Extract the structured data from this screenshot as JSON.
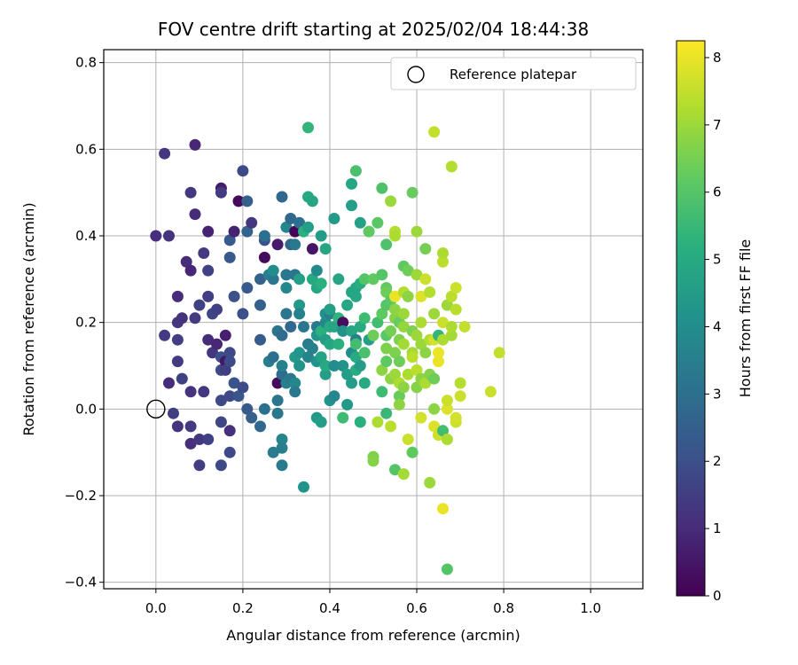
{
  "chart_data": {
    "type": "scatter",
    "title": "FOV centre drift starting at 2025/02/04 18:44:38",
    "xlabel": "Angular distance from reference (arcmin)",
    "ylabel": "Rotation from reference (arcmin)",
    "xlim": [
      -0.12,
      1.12
    ],
    "ylim": [
      -0.415,
      0.83
    ],
    "xticks": [
      "0.0",
      "0.2",
      "0.4",
      "0.6",
      "0.8",
      "1.0"
    ],
    "xtick_values": [
      0,
      0.2,
      0.4,
      0.6,
      0.8,
      1.0
    ],
    "yticks": [
      "−0.4",
      "−0.2",
      "0.0",
      "0.2",
      "0.4",
      "0.6",
      "0.8"
    ],
    "ytick_values": [
      -0.4,
      -0.2,
      0,
      0.2,
      0.4,
      0.6,
      0.8
    ],
    "grid": true,
    "legend": {
      "label": "Reference platepar",
      "position": "top-right"
    },
    "reference_point": {
      "x": 0.0,
      "y": 0.0
    },
    "colorbar": {
      "label": "Hours from first FF file",
      "colormap": "viridis",
      "range": [
        0,
        8.25
      ],
      "ticks": [
        "0",
        "1",
        "2",
        "3",
        "4",
        "5",
        "6",
        "7",
        "8"
      ],
      "tick_values": [
        0,
        1,
        2,
        3,
        4,
        5,
        6,
        7,
        8
      ]
    },
    "points": [
      [
        0.0,
        0.4,
        1.1
      ],
      [
        0.02,
        0.59,
        1.3
      ],
      [
        0.02,
        0.17,
        1.4
      ],
      [
        0.03,
        0.4,
        1.2
      ],
      [
        0.03,
        0.06,
        1.0
      ],
      [
        0.04,
        -0.01,
        1.5
      ],
      [
        0.05,
        0.26,
        1.0
      ],
      [
        0.05,
        0.2,
        1.3
      ],
      [
        0.05,
        0.16,
        1.5
      ],
      [
        0.05,
        0.11,
        1.4
      ],
      [
        0.05,
        -0.04,
        1.2
      ],
      [
        0.06,
        0.07,
        1.6
      ],
      [
        0.06,
        0.21,
        1.2
      ],
      [
        0.07,
        0.34,
        1.0
      ],
      [
        0.08,
        0.5,
        1.3
      ],
      [
        0.08,
        0.32,
        0.9
      ],
      [
        0.08,
        0.04,
        1.2
      ],
      [
        0.08,
        -0.08,
        1.1
      ],
      [
        0.08,
        -0.04,
        1.4
      ],
      [
        0.09,
        0.61,
        0.9
      ],
      [
        0.09,
        0.45,
        1.0
      ],
      [
        0.09,
        0.21,
        1.4
      ],
      [
        0.1,
        0.24,
        1.6
      ],
      [
        0.1,
        -0.07,
        1.3
      ],
      [
        0.1,
        -0.13,
        1.5
      ],
      [
        0.11,
        0.04,
        1.3
      ],
      [
        0.11,
        0.36,
        1.4
      ],
      [
        0.12,
        0.26,
        1.5
      ],
      [
        0.12,
        0.16,
        1.0
      ],
      [
        0.12,
        0.41,
        0.8
      ],
      [
        0.12,
        -0.07,
        1.6
      ],
      [
        0.12,
        0.32,
        1.6
      ],
      [
        0.13,
        0.22,
        1.7
      ],
      [
        0.13,
        0.13,
        1.3
      ],
      [
        0.14,
        0.23,
        1.6
      ],
      [
        0.14,
        0.15,
        0.9
      ],
      [
        0.15,
        0.51,
        0.6
      ],
      [
        0.15,
        0.5,
        1.4
      ],
      [
        0.15,
        0.09,
        1.9
      ],
      [
        0.15,
        0.12,
        2.0
      ],
      [
        0.15,
        -0.03,
        1.7
      ],
      [
        0.15,
        0.02,
        1.8
      ],
      [
        0.15,
        -0.13,
        1.8
      ],
      [
        0.16,
        0.11,
        0.5
      ],
      [
        0.16,
        0.17,
        0.7
      ],
      [
        0.16,
        0.09,
        1.5
      ],
      [
        0.17,
        0.39,
        2.3
      ],
      [
        0.17,
        0.35,
        2.3
      ],
      [
        0.17,
        0.13,
        1.8
      ],
      [
        0.17,
        0.11,
        1.9
      ],
      [
        0.17,
        0.03,
        1.8
      ],
      [
        0.17,
        -0.05,
        1.1
      ],
      [
        0.17,
        -0.1,
        1.8
      ],
      [
        0.18,
        0.41,
        0.8
      ],
      [
        0.18,
        0.26,
        2.0
      ],
      [
        0.18,
        0.06,
        2.1
      ],
      [
        0.19,
        0.48,
        0.2
      ],
      [
        0.19,
        0.03,
        2.2
      ],
      [
        0.2,
        0.55,
        1.8
      ],
      [
        0.2,
        0.22,
        2.0
      ],
      [
        0.2,
        0.05,
        1.9
      ],
      [
        0.21,
        0.48,
        2.5
      ],
      [
        0.21,
        0.41,
        2.6
      ],
      [
        0.21,
        0.28,
        2.3
      ],
      [
        0.21,
        0.0,
        2.3
      ],
      [
        0.22,
        0.43,
        1.3
      ],
      [
        0.22,
        -0.02,
        2.5
      ],
      [
        0.24,
        0.24,
        2.5
      ],
      [
        0.24,
        0.3,
        2.6
      ],
      [
        0.24,
        0.16,
        2.4
      ],
      [
        0.24,
        -0.04,
        2.8
      ],
      [
        0.25,
        0.39,
        2.1
      ],
      [
        0.25,
        0.4,
        3.0
      ],
      [
        0.25,
        0.35,
        0.2
      ],
      [
        0.25,
        0.0,
        3.0
      ],
      [
        0.26,
        0.31,
        3.6
      ],
      [
        0.26,
        0.11,
        3.5
      ],
      [
        0.27,
        0.3,
        3.2
      ],
      [
        0.27,
        0.12,
        3.0
      ],
      [
        0.27,
        -0.1,
        3.4
      ],
      [
        0.27,
        0.32,
        4.0
      ],
      [
        0.28,
        0.38,
        0.6
      ],
      [
        0.28,
        0.18,
        3.2
      ],
      [
        0.28,
        0.06,
        0.2
      ],
      [
        0.28,
        0.02,
        3.2
      ],
      [
        0.28,
        -0.01,
        3.3
      ],
      [
        0.29,
        0.49,
        2.8
      ],
      [
        0.29,
        0.08,
        2.9
      ],
      [
        0.29,
        -0.07,
        3.7
      ],
      [
        0.29,
        -0.13,
        3.4
      ],
      [
        0.29,
        -0.09,
        3.5
      ],
      [
        0.29,
        0.1,
        3.6
      ],
      [
        0.29,
        0.17,
        2.9
      ],
      [
        0.3,
        0.42,
        3.8
      ],
      [
        0.3,
        0.28,
        3.8
      ],
      [
        0.3,
        0.22,
        3.2
      ],
      [
        0.3,
        0.31,
        3.3
      ],
      [
        0.3,
        0.06,
        3.6
      ],
      [
        0.31,
        0.44,
        2.8
      ],
      [
        0.31,
        0.38,
        2.7
      ],
      [
        0.31,
        0.07,
        3.3
      ],
      [
        0.31,
        0.19,
        2.8
      ],
      [
        0.32,
        0.41,
        0.1
      ],
      [
        0.32,
        0.38,
        3.3
      ],
      [
        0.32,
        0.31,
        3.2
      ],
      [
        0.32,
        0.12,
        4.4
      ],
      [
        0.32,
        0.06,
        3.8
      ],
      [
        0.32,
        0.04,
        3.3
      ],
      [
        0.33,
        0.43,
        3.0
      ],
      [
        0.33,
        0.24,
        4.4
      ],
      [
        0.33,
        0.3,
        4.6
      ],
      [
        0.33,
        0.13,
        4.3
      ],
      [
        0.33,
        0.22,
        3.6
      ],
      [
        0.33,
        0.1,
        4.2
      ],
      [
        0.34,
        0.19,
        3.2
      ],
      [
        0.34,
        -0.18,
        4.2
      ],
      [
        0.34,
        0.41,
        5.2
      ],
      [
        0.35,
        0.49,
        5.0
      ],
      [
        0.35,
        0.65,
        5.4
      ],
      [
        0.35,
        0.15,
        3.4
      ],
      [
        0.35,
        0.12,
        3.7
      ],
      [
        0.35,
        0.42,
        4.6
      ],
      [
        0.36,
        0.37,
        0.5
      ],
      [
        0.36,
        0.14,
        3.6
      ],
      [
        0.36,
        0.3,
        5.0
      ],
      [
        0.36,
        0.48,
        4.8
      ],
      [
        0.37,
        0.32,
        3.9
      ],
      [
        0.37,
        0.19,
        3.3
      ],
      [
        0.37,
        0.17,
        4.3
      ],
      [
        0.37,
        0.11,
        4.2
      ],
      [
        0.37,
        -0.02,
        4.4
      ],
      [
        0.37,
        0.28,
        4.9
      ],
      [
        0.38,
        0.29,
        5.2
      ],
      [
        0.38,
        -0.03,
        4.6
      ],
      [
        0.38,
        0.12,
        4.7
      ],
      [
        0.38,
        0.4,
        4.5
      ],
      [
        0.38,
        0.18,
        5.2
      ],
      [
        0.39,
        0.2,
        3.8
      ],
      [
        0.39,
        0.37,
        4.8
      ],
      [
        0.39,
        0.22,
        4.1
      ],
      [
        0.39,
        0.08,
        4.6
      ],
      [
        0.39,
        0.16,
        4.5
      ],
      [
        0.39,
        0.1,
        5.0
      ],
      [
        0.4,
        0.22,
        3.6
      ],
      [
        0.4,
        0.02,
        4.2
      ],
      [
        0.4,
        0.19,
        5.0
      ],
      [
        0.4,
        0.23,
        4.6
      ],
      [
        0.4,
        0.15,
        4.9
      ],
      [
        0.41,
        0.44,
        4.4
      ],
      [
        0.41,
        0.19,
        4.8
      ],
      [
        0.41,
        0.1,
        4.0
      ],
      [
        0.41,
        0.03,
        3.8
      ],
      [
        0.42,
        0.3,
        4.8
      ],
      [
        0.42,
        0.15,
        5.2
      ],
      [
        0.42,
        0.21,
        5.3
      ],
      [
        0.43,
        0.2,
        0.3
      ],
      [
        0.43,
        0.1,
        4.2
      ],
      [
        0.43,
        0.18,
        4.2
      ],
      [
        0.43,
        -0.02,
        5.6
      ],
      [
        0.44,
        0.24,
        4.9
      ],
      [
        0.44,
        0.01,
        4.4
      ],
      [
        0.44,
        0.08,
        4.6
      ],
      [
        0.45,
        0.52,
        4.9
      ],
      [
        0.45,
        0.47,
        4.6
      ],
      [
        0.45,
        0.27,
        4.8
      ],
      [
        0.45,
        0.13,
        4.0
      ],
      [
        0.45,
        0.18,
        4.8
      ],
      [
        0.45,
        0.06,
        4.5
      ],
      [
        0.46,
        0.55,
        5.8
      ],
      [
        0.46,
        0.28,
        4.9
      ],
      [
        0.46,
        0.16,
        3.6
      ],
      [
        0.46,
        0.26,
        4.9
      ],
      [
        0.46,
        0.12,
        5.0
      ],
      [
        0.46,
        0.09,
        5.1
      ],
      [
        0.46,
        0.15,
        5.7
      ],
      [
        0.47,
        0.43,
        4.7
      ],
      [
        0.47,
        0.19,
        5.0
      ],
      [
        0.47,
        0.1,
        4.5
      ],
      [
        0.47,
        -0.03,
        5.2
      ],
      [
        0.47,
        0.29,
        5.1
      ],
      [
        0.48,
        0.06,
        5.0
      ],
      [
        0.48,
        0.21,
        5.6
      ],
      [
        0.48,
        0.13,
        5.8
      ],
      [
        0.48,
        0.3,
        6.0
      ],
      [
        0.49,
        0.41,
        6.2
      ],
      [
        0.49,
        0.16,
        4.6
      ],
      [
        0.5,
        0.17,
        6.4
      ],
      [
        0.5,
        -0.11,
        6.6
      ],
      [
        0.5,
        -0.12,
        6.7
      ],
      [
        0.5,
        0.3,
        6.2
      ],
      [
        0.51,
        0.43,
        6.1
      ],
      [
        0.51,
        -0.03,
        7.2
      ],
      [
        0.51,
        0.2,
        5.7
      ],
      [
        0.52,
        0.51,
        5.9
      ],
      [
        0.52,
        0.22,
        6.2
      ],
      [
        0.52,
        0.09,
        6.8
      ],
      [
        0.52,
        0.04,
        5.6
      ],
      [
        0.52,
        0.31,
        6.0
      ],
      [
        0.53,
        0.38,
        5.9
      ],
      [
        0.53,
        0.28,
        6.2
      ],
      [
        0.53,
        0.24,
        6.0
      ],
      [
        0.53,
        0.11,
        6.2
      ],
      [
        0.53,
        0.14,
        6.6
      ],
      [
        0.53,
        0.17,
        6.1
      ],
      [
        0.53,
        -0.01,
        5.5
      ],
      [
        0.53,
        0.27,
        6.4
      ],
      [
        0.54,
        0.48,
        7.0
      ],
      [
        0.54,
        0.18,
        6.5
      ],
      [
        0.54,
        0.25,
        6.1
      ],
      [
        0.54,
        -0.04,
        7.4
      ],
      [
        0.54,
        0.07,
        6.8
      ],
      [
        0.55,
        0.41,
        7.3
      ],
      [
        0.55,
        0.4,
        7.2
      ],
      [
        0.55,
        0.26,
        8.0
      ],
      [
        0.55,
        0.21,
        6.7
      ],
      [
        0.55,
        0.13,
        6.6
      ],
      [
        0.55,
        -0.14,
        6.0
      ],
      [
        0.55,
        0.08,
        7.0
      ],
      [
        0.55,
        0.23,
        6.8
      ],
      [
        0.56,
        0.2,
        6.3
      ],
      [
        0.56,
        0.16,
        6.6
      ],
      [
        0.56,
        0.03,
        6.3
      ],
      [
        0.56,
        0.06,
        7.2
      ],
      [
        0.56,
        0.01,
        6.8
      ],
      [
        0.56,
        0.11,
        6.4
      ],
      [
        0.57,
        0.33,
        6.2
      ],
      [
        0.57,
        0.22,
        7.0
      ],
      [
        0.57,
        0.15,
        7.1
      ],
      [
        0.57,
        0.27,
        7.3
      ],
      [
        0.57,
        -0.15,
        7.1
      ],
      [
        0.57,
        0.05,
        6.8
      ],
      [
        0.57,
        0.19,
        6.9
      ],
      [
        0.58,
        0.32,
        6.4
      ],
      [
        0.58,
        -0.07,
        7.6
      ],
      [
        0.58,
        0.26,
        6.8
      ],
      [
        0.58,
        0.08,
        7.2
      ],
      [
        0.59,
        0.5,
        6.3
      ],
      [
        0.59,
        0.18,
        6.6
      ],
      [
        0.59,
        0.13,
        7.1
      ],
      [
        0.59,
        0.12,
        7.4
      ],
      [
        0.59,
        -0.1,
        6.9
      ],
      [
        0.59,
        -0.1,
        6.2
      ],
      [
        0.6,
        0.41,
        7.0
      ],
      [
        0.6,
        0.31,
        7.0
      ],
      [
        0.6,
        0.09,
        7.4
      ],
      [
        0.6,
        0.17,
        7.0
      ],
      [
        0.6,
        0.05,
        6.7
      ],
      [
        0.61,
        0.26,
        7.8
      ],
      [
        0.61,
        0.2,
        7.2
      ],
      [
        0.61,
        -0.02,
        7.7
      ],
      [
        0.61,
        0.15,
        7.0
      ],
      [
        0.61,
        0.07,
        6.8
      ],
      [
        0.62,
        0.3,
        7.6
      ],
      [
        0.62,
        0.37,
        6.5
      ],
      [
        0.62,
        0.13,
        6.8
      ],
      [
        0.62,
        0.06,
        7.2
      ],
      [
        0.63,
        0.16,
        7.3
      ],
      [
        0.63,
        -0.17,
        7.0
      ],
      [
        0.63,
        0.27,
        7.3
      ],
      [
        0.63,
        0.08,
        6.7
      ],
      [
        0.64,
        0.64,
        7.5
      ],
      [
        0.64,
        0.22,
        7.0
      ],
      [
        0.64,
        -0.04,
        7.8
      ],
      [
        0.64,
        0.16,
        7.7
      ],
      [
        0.64,
        0.0,
        6.8
      ],
      [
        0.64,
        0.07,
        6.4
      ],
      [
        0.65,
        0.13,
        8.0
      ],
      [
        0.65,
        0.11,
        8.0
      ],
      [
        0.65,
        -0.06,
        7.6
      ],
      [
        0.65,
        0.17,
        5.4
      ],
      [
        0.66,
        0.34,
        7.4
      ],
      [
        0.66,
        0.36,
        7.2
      ],
      [
        0.66,
        -0.23,
        8.0
      ],
      [
        0.66,
        -0.05,
        5.7
      ],
      [
        0.66,
        0.16,
        7.2
      ],
      [
        0.66,
        0.2,
        7.6
      ],
      [
        0.67,
        0.24,
        7.0
      ],
      [
        0.67,
        0.0,
        7.8
      ],
      [
        0.67,
        -0.07,
        7.2
      ],
      [
        0.67,
        -0.37,
        6.0
      ],
      [
        0.67,
        0.02,
        7.6
      ],
      [
        0.68,
        0.56,
        7.3
      ],
      [
        0.68,
        0.26,
        7.4
      ],
      [
        0.68,
        0.17,
        7.1
      ],
      [
        0.68,
        0.19,
        7.2
      ],
      [
        0.69,
        -0.03,
        7.6
      ],
      [
        0.69,
        -0.02,
        7.7
      ],
      [
        0.69,
        0.28,
        7.6
      ],
      [
        0.69,
        0.23,
        7.4
      ],
      [
        0.7,
        0.06,
        7.3
      ],
      [
        0.7,
        0.03,
        7.6
      ],
      [
        0.71,
        0.19,
        7.5
      ],
      [
        0.77,
        0.04,
        7.6
      ],
      [
        0.79,
        0.13,
        7.5
      ]
    ]
  }
}
